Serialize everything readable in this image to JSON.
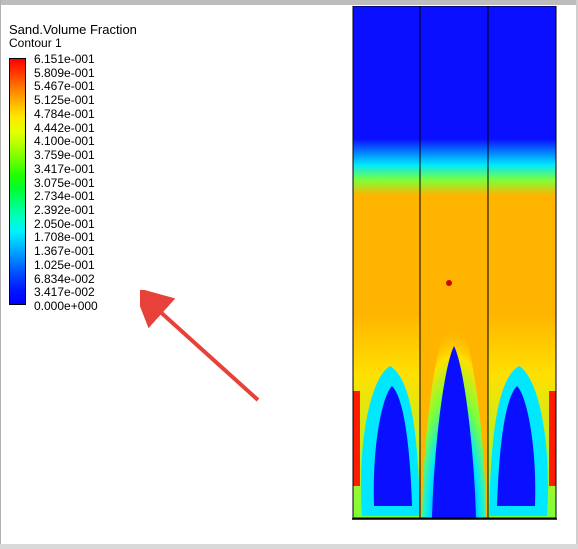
{
  "legend": {
    "title": "Sand.Volume Fraction",
    "subtitle": "Contour 1",
    "colors": [
      "#ff0000",
      "#ff3a00",
      "#ff7a00",
      "#ffb200",
      "#ffe600",
      "#e6ff00",
      "#b0ff00",
      "#6fff00",
      "#22ff00",
      "#00ff2a",
      "#00ff7a",
      "#00ffc0",
      "#00f0ff",
      "#00b8ff",
      "#0080ff",
      "#0048ff",
      "#0018ff",
      "#0000ff"
    ],
    "ticks": [
      "6.151e-001",
      "5.809e-001",
      "5.467e-001",
      "5.125e-001",
      "4.784e-001",
      "4.442e-001",
      "4.100e-001",
      "3.759e-001",
      "3.417e-001",
      "3.075e-001",
      "2.734e-001",
      "2.392e-001",
      "2.050e-001",
      "1.708e-001",
      "1.367e-001",
      "1.025e-001",
      "6.834e-002",
      "3.417e-002",
      "0.000e+000"
    ]
  },
  "annotation": {
    "arrow_color": "#e8413a"
  },
  "contour_colors": {
    "blue": "#0a10ff",
    "orange": "#ffb400",
    "red": "#ff1a00",
    "cyan": "#00e8ff",
    "green": "#7dff3a",
    "yellow": "#ffe000",
    "marker": "#d40000"
  }
}
